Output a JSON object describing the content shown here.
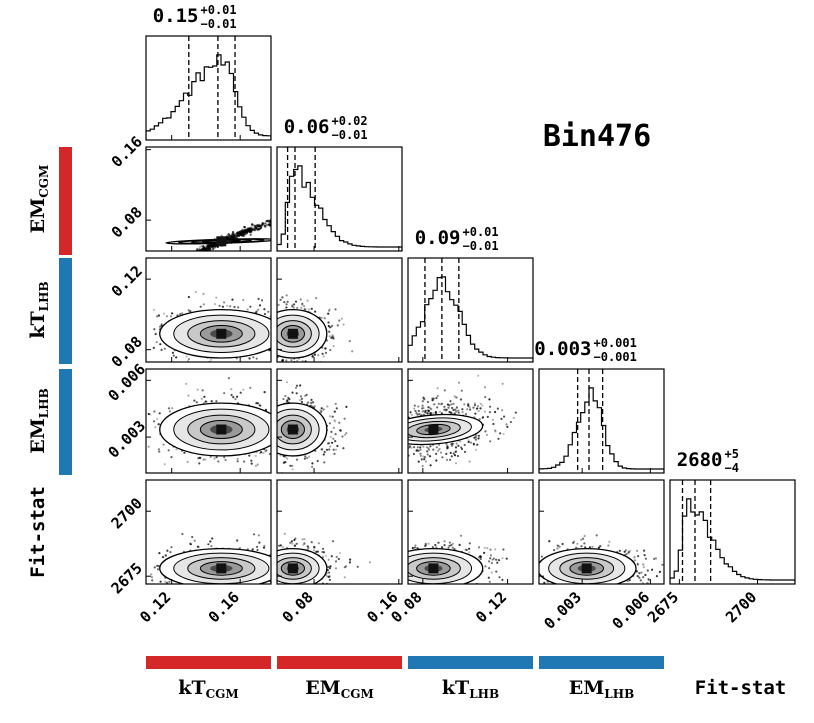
{
  "chart_data": {
    "type": "corner",
    "title": "Bin476",
    "parameters": [
      {
        "key": "kT_CGM",
        "label_main": "kT",
        "label_sub": "CGM",
        "group_color": "#d62728",
        "median": "0.15",
        "err_plus": "+0.01",
        "err_minus": "−0.01",
        "range": [
          0.105,
          0.178
        ],
        "quantiles": [
          0.13,
          0.147,
          0.157
        ],
        "mode": 0.149,
        "ticks": [
          0.12,
          0.16
        ],
        "tick_labels": [
          "0.12",
          "0.16"
        ]
      },
      {
        "key": "EM_CGM",
        "label_main": "EM",
        "label_sub": "CGM",
        "group_color": "#d62728",
        "median": "0.06",
        "err_plus": "+0.02",
        "err_minus": "−0.01",
        "range": [
          0.045,
          0.163
        ],
        "quantiles": [
          0.055,
          0.062,
          0.081
        ],
        "mode": 0.06,
        "ticks": [
          0.08,
          0.16
        ],
        "tick_labels": [
          "0.08",
          "0.16"
        ]
      },
      {
        "key": "kT_LHB",
        "label_main": "kT",
        "label_sub": "LHB",
        "group_color": "#1f77b4",
        "median": "0.09",
        "err_plus": "+0.01",
        "err_minus": "−0.01",
        "range": [
          0.073,
          0.132
        ],
        "quantiles": [
          0.081,
          0.089,
          0.097
        ],
        "mode": 0.089,
        "ticks": [
          0.08,
          0.12
        ],
        "tick_labels": [
          "0.08",
          "0.12"
        ]
      },
      {
        "key": "EM_LHB",
        "label_main": "EM",
        "label_sub": "LHB",
        "group_color": "#1f77b4",
        "median": "0.003",
        "err_plus": "+0.001",
        "err_minus": "−0.001",
        "range": [
          0.0011,
          0.0066
        ],
        "quantiles": [
          0.0028,
          0.0033,
          0.0039
        ],
        "mode": 0.0034,
        "ticks": [
          0.003,
          0.006
        ],
        "tick_labels": [
          "0.003",
          "0.006"
        ]
      },
      {
        "key": "Fit-stat",
        "label_main": "Fit-stat",
        "label_sub": "",
        "group_color": "",
        "median": "2680",
        "err_plus": "+5",
        "err_minus": "−4",
        "range": [
          2672,
          2712
        ],
        "quantiles": [
          2676,
          2680,
          2685
        ],
        "mode": 2678,
        "ticks": [
          2675,
          2700
        ],
        "tick_labels": [
          "2675",
          "2700"
        ]
      }
    ],
    "panels": [
      {
        "row": 1,
        "col": 0,
        "type": "2d",
        "center": [
          0.149,
          0.056
        ],
        "tilt": -0.8,
        "spread": [
          0.9,
          0.08
        ]
      },
      {
        "row": 2,
        "col": 0,
        "type": "2d",
        "center": [
          0.149,
          0.089
        ],
        "tilt": 0,
        "spread": [
          1,
          0.55
        ]
      },
      {
        "row": 2,
        "col": 1,
        "type": "2d",
        "center": [
          0.06,
          0.089
        ],
        "tilt": 0,
        "spread": [
          0.55,
          0.55
        ]
      },
      {
        "row": 3,
        "col": 0,
        "type": "2d",
        "center": [
          0.149,
          0.0034
        ],
        "tilt": 0,
        "spread": [
          1,
          0.6
        ]
      },
      {
        "row": 3,
        "col": 1,
        "type": "2d",
        "center": [
          0.06,
          0.0034
        ],
        "tilt": 0,
        "spread": [
          0.55,
          0.6
        ]
      },
      {
        "row": 3,
        "col": 2,
        "type": "2d",
        "center": [
          0.085,
          0.0034
        ],
        "tilt": -0.25,
        "spread": [
          0.8,
          0.6
        ]
      },
      {
        "row": 4,
        "col": 0,
        "type": "2d",
        "center": [
          0.149,
          2678
        ],
        "tilt": 0,
        "spread": [
          1,
          0.45
        ]
      },
      {
        "row": 4,
        "col": 1,
        "type": "2d",
        "center": [
          0.06,
          2678
        ],
        "tilt": 0,
        "spread": [
          0.55,
          0.45
        ]
      },
      {
        "row": 4,
        "col": 2,
        "type": "2d",
        "center": [
          0.085,
          2678
        ],
        "tilt": 0,
        "spread": [
          0.8,
          0.45
        ]
      },
      {
        "row": 4,
        "col": 3,
        "type": "2d",
        "center": [
          0.0032,
          2678
        ],
        "tilt": 0,
        "spread": [
          0.8,
          0.45
        ]
      }
    ],
    "grid": false,
    "legend": "none"
  }
}
